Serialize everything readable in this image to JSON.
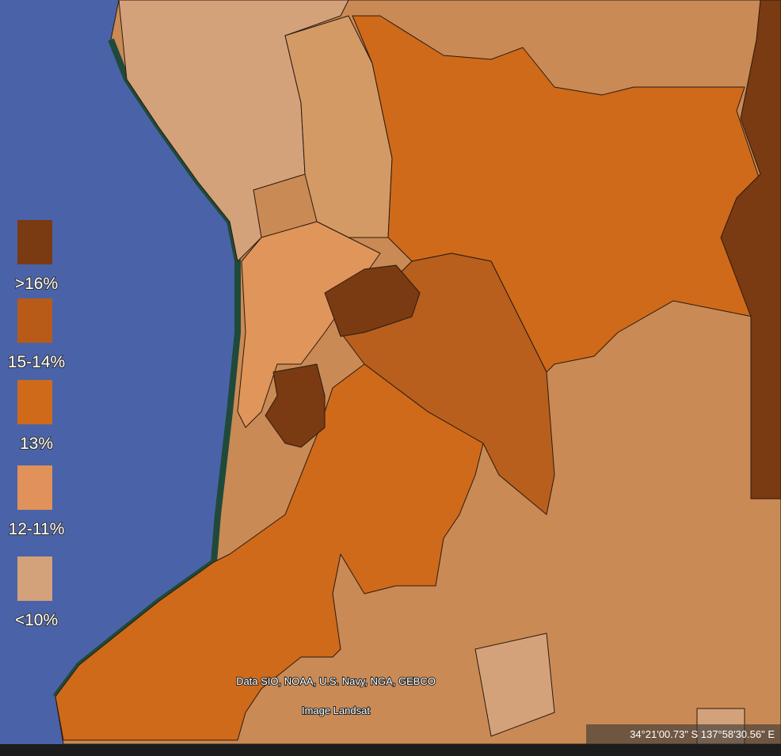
{
  "legend": {
    "items": [
      {
        "label": ">16%",
        "color": "#7a3a12"
      },
      {
        "label": "15-14%",
        "color": "#b85a18"
      },
      {
        "label": "13%",
        "color": "#cf6a1a"
      },
      {
        "label": "12-11%",
        "color": "#e0925a"
      },
      {
        "label": "<10%",
        "color": "#d4a27a"
      }
    ]
  },
  "attribution": {
    "data": "Data SIO, NOAA, U.S. Navy, NGA, GEBCO",
    "image": "Image Landsat"
  },
  "status": {
    "coordinates": "34°21'00.73\" S  137°58'30.56\" E"
  }
}
